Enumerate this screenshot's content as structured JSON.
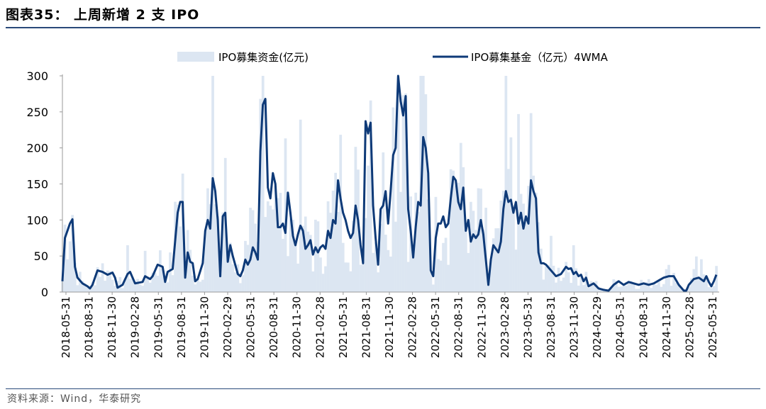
{
  "figure": {
    "title": "图表35：  上周新增 2 支 IPO",
    "source": "资料来源：Wind，华泰研究"
  },
  "colors": {
    "area": "#dce6f2",
    "line": "#0e3a78",
    "axis": "#999999",
    "rule": "#2a4a7a"
  },
  "chart_data": {
    "type": "area+line",
    "series": [
      {
        "name": "IPO募集资金(亿元)",
        "kind": "area"
      },
      {
        "name": "IPO募集基金（亿元）4WMA",
        "kind": "line"
      }
    ],
    "y_ticks": [
      "300",
      "250",
      "200",
      "150",
      "100",
      "50",
      "0"
    ],
    "ylim": [
      0,
      300
    ],
    "x_tick_labels": [
      "2018-05-31",
      "2018-08-31",
      "2018-11-30",
      "2019-02-28",
      "2019-05-31",
      "2019-08-31",
      "2019-11-30",
      "2020-02-29",
      "2020-05-31",
      "2020-08-31",
      "2020-11-30",
      "2021-02-28",
      "2021-05-31",
      "2021-08-31",
      "2021-11-30",
      "2022-02-28",
      "2022-05-31",
      "2022-08-31",
      "2022-11-30",
      "2023-02-28",
      "2023-05-31",
      "2023-08-31",
      "2023-11-30",
      "2024-02-29",
      "2024-05-31",
      "2024-08-31",
      "2024-11-30",
      "2025-02-28",
      "2025-05-31"
    ],
    "line_keyframes": [
      [
        0,
        15
      ],
      [
        1,
        75
      ],
      [
        3,
        95
      ],
      [
        4,
        101
      ],
      [
        5,
        35
      ],
      [
        6,
        20
      ],
      [
        8,
        12
      ],
      [
        10,
        8
      ],
      [
        11,
        5
      ],
      [
        12,
        10
      ],
      [
        14,
        30
      ],
      [
        16,
        28
      ],
      [
        18,
        24
      ],
      [
        20,
        27
      ],
      [
        21,
        20
      ],
      [
        22,
        6
      ],
      [
        24,
        10
      ],
      [
        26,
        25
      ],
      [
        27,
        28
      ],
      [
        28,
        20
      ],
      [
        29,
        12
      ],
      [
        32,
        14
      ],
      [
        33,
        22
      ],
      [
        35,
        18
      ],
      [
        36,
        22
      ],
      [
        38,
        38
      ],
      [
        40,
        35
      ],
      [
        41,
        14
      ],
      [
        42,
        28
      ],
      [
        44,
        32
      ],
      [
        46,
        110
      ],
      [
        47,
        125
      ],
      [
        48,
        125
      ],
      [
        49,
        20
      ],
      [
        50,
        55
      ],
      [
        51,
        42
      ],
      [
        52,
        40
      ],
      [
        53,
        15
      ],
      [
        54,
        18
      ],
      [
        56,
        40
      ],
      [
        57,
        85
      ],
      [
        58,
        100
      ],
      [
        59,
        88
      ],
      [
        60,
        158
      ],
      [
        61,
        140
      ],
      [
        62,
        100
      ],
      [
        63,
        22
      ],
      [
        64,
        105
      ],
      [
        65,
        110
      ],
      [
        66,
        42
      ],
      [
        67,
        65
      ],
      [
        68,
        50
      ],
      [
        70,
        25
      ],
      [
        71,
        22
      ],
      [
        72,
        30
      ],
      [
        73,
        45
      ],
      [
        74,
        38
      ],
      [
        75,
        45
      ],
      [
        76,
        62
      ],
      [
        77,
        55
      ],
      [
        78,
        45
      ],
      [
        79,
        195
      ],
      [
        80,
        260
      ],
      [
        81,
        268
      ],
      [
        82,
        145
      ],
      [
        83,
        130
      ],
      [
        84,
        165
      ],
      [
        85,
        150
      ],
      [
        86,
        90
      ],
      [
        87,
        90
      ],
      [
        88,
        95
      ],
      [
        89,
        82
      ],
      [
        90,
        138
      ],
      [
        91,
        110
      ],
      [
        92,
        78
      ],
      [
        93,
        65
      ],
      [
        94,
        80
      ],
      [
        95,
        92
      ],
      [
        96,
        85
      ],
      [
        97,
        60
      ],
      [
        98,
        65
      ],
      [
        99,
        72
      ],
      [
        100,
        52
      ],
      [
        101,
        62
      ],
      [
        102,
        55
      ],
      [
        103,
        62
      ],
      [
        104,
        65
      ],
      [
        105,
        60
      ],
      [
        106,
        85
      ],
      [
        107,
        75
      ],
      [
        108,
        100
      ],
      [
        109,
        95
      ],
      [
        110,
        155
      ],
      [
        111,
        130
      ],
      [
        112,
        110
      ],
      [
        113,
        100
      ],
      [
        114,
        85
      ],
      [
        115,
        75
      ],
      [
        116,
        82
      ],
      [
        117,
        120
      ],
      [
        118,
        100
      ],
      [
        119,
        65
      ],
      [
        120,
        40
      ],
      [
        121,
        237
      ],
      [
        122,
        220
      ],
      [
        123,
        235
      ],
      [
        124,
        120
      ],
      [
        125,
        75
      ],
      [
        126,
        38
      ],
      [
        127,
        115
      ],
      [
        128,
        120
      ],
      [
        129,
        140
      ],
      [
        130,
        95
      ],
      [
        131,
        140
      ],
      [
        132,
        190
      ],
      [
        133,
        200
      ],
      [
        134,
        300
      ],
      [
        135,
        265
      ],
      [
        136,
        245
      ],
      [
        137,
        272
      ],
      [
        138,
        115
      ],
      [
        139,
        85
      ],
      [
        140,
        48
      ],
      [
        141,
        90
      ],
      [
        142,
        125
      ],
      [
        143,
        120
      ],
      [
        144,
        215
      ],
      [
        145,
        200
      ],
      [
        146,
        165
      ],
      [
        147,
        30
      ],
      [
        148,
        22
      ],
      [
        149,
        75
      ],
      [
        150,
        95
      ],
      [
        151,
        95
      ],
      [
        152,
        105
      ],
      [
        153,
        90
      ],
      [
        154,
        95
      ],
      [
        155,
        130
      ],
      [
        156,
        160
      ],
      [
        157,
        155
      ],
      [
        158,
        125
      ],
      [
        159,
        115
      ],
      [
        160,
        145
      ],
      [
        161,
        85
      ],
      [
        162,
        100
      ],
      [
        163,
        70
      ],
      [
        164,
        80
      ],
      [
        165,
        75
      ],
      [
        166,
        80
      ],
      [
        167,
        100
      ],
      [
        168,
        80
      ],
      [
        170,
        10
      ],
      [
        171,
        45
      ],
      [
        172,
        65
      ],
      [
        173,
        60
      ],
      [
        174,
        55
      ],
      [
        175,
        70
      ],
      [
        176,
        115
      ],
      [
        177,
        140
      ],
      [
        178,
        125
      ],
      [
        179,
        128
      ],
      [
        180,
        110
      ],
      [
        181,
        125
      ],
      [
        182,
        95
      ],
      [
        183,
        110
      ],
      [
        184,
        88
      ],
      [
        185,
        105
      ],
      [
        186,
        95
      ],
      [
        187,
        155
      ],
      [
        188,
        140
      ],
      [
        189,
        130
      ],
      [
        190,
        55
      ],
      [
        191,
        40
      ],
      [
        192,
        40
      ],
      [
        193,
        38
      ],
      [
        195,
        30
      ],
      [
        197,
        22
      ],
      [
        199,
        25
      ],
      [
        200,
        30
      ],
      [
        201,
        35
      ],
      [
        202,
        32
      ],
      [
        203,
        33
      ],
      [
        204,
        25
      ],
      [
        205,
        28
      ],
      [
        206,
        22
      ],
      [
        207,
        24
      ],
      [
        208,
        15
      ],
      [
        209,
        20
      ],
      [
        210,
        8
      ],
      [
        212,
        12
      ],
      [
        214,
        5
      ],
      [
        216,
        3
      ],
      [
        218,
        2
      ],
      [
        220,
        10
      ],
      [
        222,
        15
      ],
      [
        224,
        10
      ],
      [
        226,
        14
      ],
      [
        228,
        12
      ],
      [
        230,
        10
      ],
      [
        232,
        12
      ],
      [
        234,
        10
      ],
      [
        236,
        12
      ],
      [
        238,
        16
      ],
      [
        240,
        20
      ],
      [
        242,
        22
      ],
      [
        244,
        22
      ],
      [
        246,
        10
      ],
      [
        248,
        2
      ],
      [
        249,
        2
      ],
      [
        250,
        10
      ],
      [
        252,
        18
      ],
      [
        254,
        20
      ],
      [
        256,
        15
      ],
      [
        257,
        22
      ],
      [
        258,
        14
      ],
      [
        259,
        8
      ],
      [
        260,
        15
      ],
      [
        261,
        24
      ]
    ],
    "x_points": 262
  }
}
